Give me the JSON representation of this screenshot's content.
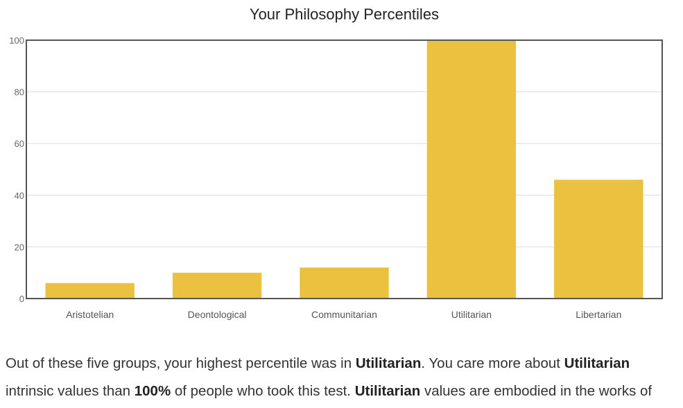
{
  "chart_data": {
    "type": "bar",
    "title": "Your Philosophy Percentiles",
    "categories": [
      "Aristotelian",
      "Deontological",
      "Communitarian",
      "Utilitarian",
      "Libertarian"
    ],
    "values": [
      6,
      10,
      12,
      100,
      46
    ],
    "ylim": [
      0,
      100
    ],
    "yticks": [
      0,
      20,
      40,
      60,
      80,
      100
    ],
    "xlabel": "",
    "ylabel": "",
    "grid": true,
    "bar_color": "#EBC240",
    "gridline_color": "#dddddd",
    "frame_color": "#555555"
  },
  "summary": {
    "line1": [
      {
        "text": "Out of these five groups, your highest percentile was in ",
        "bold": false
      },
      {
        "text": "Utilitarian",
        "bold": true
      },
      {
        "text": ". You care more about ",
        "bold": false
      },
      {
        "text": "Utilitarian",
        "bold": true
      }
    ],
    "line2": [
      {
        "text": "intrinsic values than ",
        "bold": false
      },
      {
        "text": "100%",
        "bold": true
      },
      {
        "text": " of people who took this test. ",
        "bold": false
      },
      {
        "text": "Utilitarian",
        "bold": true
      },
      {
        "text": " values are embodied in the works of",
        "bold": false
      }
    ]
  }
}
